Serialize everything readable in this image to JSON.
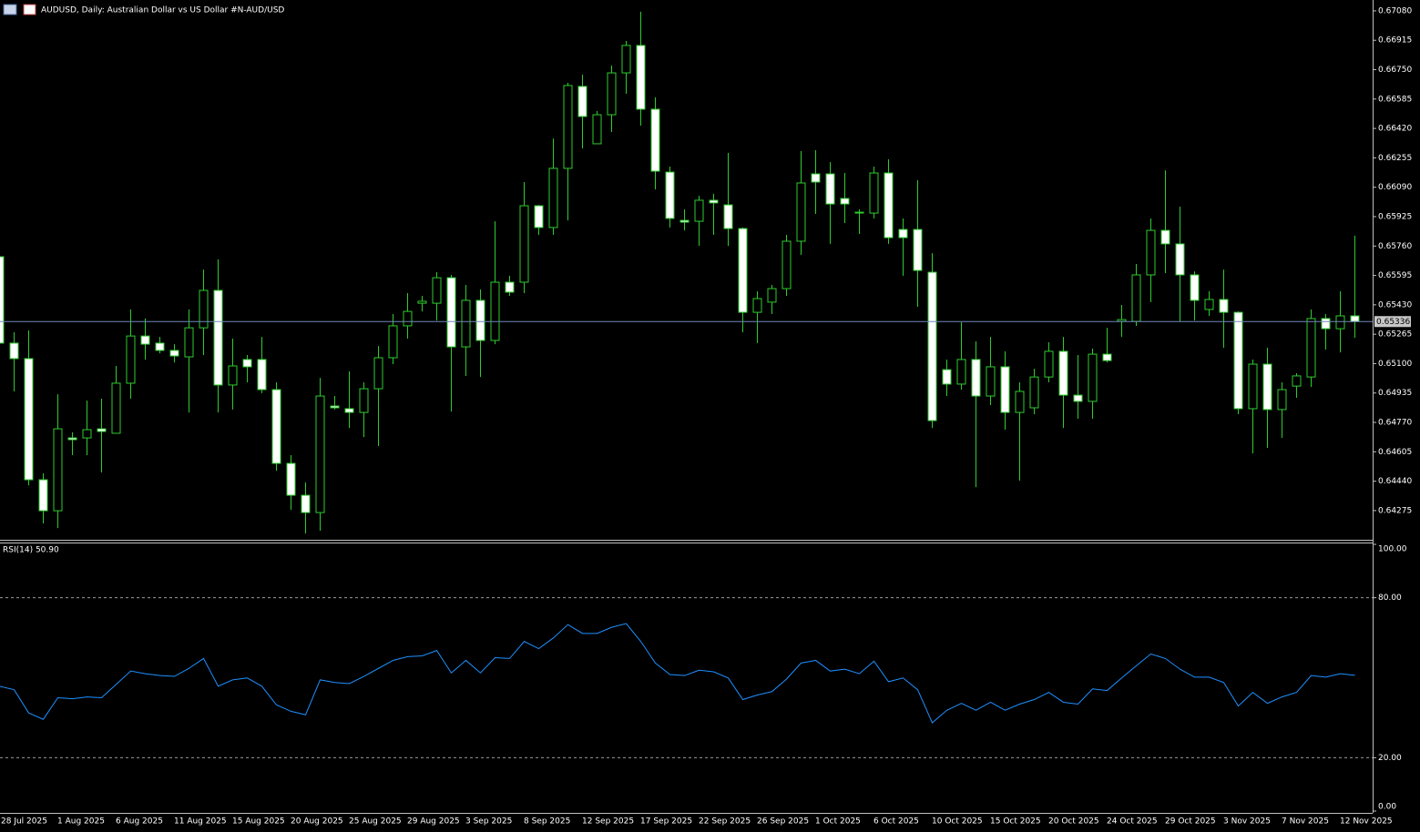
{
  "chart_data": [
    {
      "type": "candlestick",
      "title": "AUDUSD, Daily:  Australian Dollar vs US Dollar #N-AUD/USD",
      "categories": [
        "28 Jul 2025",
        null,
        null,
        null,
        "1 Aug 2025",
        null,
        null,
        null,
        "6 Aug 2025",
        null,
        null,
        null,
        "11 Aug 2025",
        null,
        null,
        null,
        "15 Aug 2025",
        null,
        null,
        null,
        "20 Aug 2025",
        null,
        null,
        null,
        "25 Aug 2025",
        null,
        null,
        null,
        "29 Aug 2025",
        null,
        null,
        null,
        "3 Sep 2025",
        null,
        null,
        null,
        "8 Sep 2025",
        null,
        null,
        null,
        "12 Sep 2025",
        null,
        null,
        null,
        "17 Sep 2025",
        null,
        null,
        null,
        "22 Sep 2025",
        null,
        null,
        null,
        "26 Sep 2025",
        null,
        null,
        null,
        "1 Oct 2025",
        null,
        null,
        null,
        "6 Oct 2025",
        null,
        null,
        null,
        "10 Oct 2025",
        null,
        null,
        null,
        "15 Oct 2025",
        null,
        null,
        null,
        "20 Oct 2025",
        null,
        null,
        null,
        "24 Oct 2025",
        null,
        null,
        null,
        "29 Oct 2025",
        null,
        null,
        null,
        "3 Nov 2025",
        null,
        null,
        null,
        "7 Nov 2025",
        null,
        null,
        null,
        "12 Nov 2025",
        null
      ],
      "open": [
        0.657,
        0.65215,
        0.65128,
        0.64448,
        0.64274,
        0.64683,
        0.64683,
        0.64734,
        0.64709,
        0.6499,
        0.65255,
        0.65215,
        0.65174,
        0.65138,
        0.65301,
        0.65511,
        0.6498,
        0.65123,
        0.65123,
        0.64954,
        0.6454,
        0.64361,
        0.64264,
        0.64862,
        0.64847,
        0.64826,
        0.64959,
        0.65133,
        0.65312,
        0.65439,
        0.65439,
        0.65582,
        0.65194,
        0.65455,
        0.6523,
        0.65557,
        0.65557,
        0.65986,
        0.65864,
        0.66196,
        0.66656,
        0.66334,
        0.66497,
        0.66732,
        0.66886,
        0.66528,
        0.66175,
        0.65904,
        0.65899,
        0.66017,
        0.65991,
        0.65858,
        0.65388,
        0.65445,
        0.65521,
        0.65787,
        0.66165,
        0.66165,
        0.66027,
        0.6595,
        0.65945,
        0.6617,
        0.65853,
        0.65853,
        0.65613,
        0.65066,
        0.64985,
        0.65123,
        0.64918,
        0.65082,
        0.64826,
        0.64852,
        0.65025,
        0.65169,
        0.64923,
        0.64888,
        0.65153,
        0.65337,
        0.65337,
        0.65598,
        0.65848,
        0.65772,
        0.65598,
        0.65404,
        0.6546,
        0.65388,
        0.64847,
        0.65097,
        0.64842,
        0.64974,
        0.65025,
        0.65353,
        0.65296,
        0.65368
      ],
      "high": [
        0.657,
        0.65276,
        0.65286,
        0.64484,
        0.64928,
        0.64714,
        0.64893,
        0.64903,
        0.65087,
        0.65404,
        0.65353,
        0.6525,
        0.65209,
        0.65404,
        0.65628,
        0.65685,
        0.6524,
        0.65148,
        0.6525,
        0.64995,
        0.64586,
        0.64433,
        0.6502,
        0.64918,
        0.65056,
        0.64995,
        0.65199,
        0.65378,
        0.65496,
        0.6548,
        0.65613,
        0.65598,
        0.65542,
        0.65516,
        0.65899,
        0.65593,
        0.66119,
        0.65991,
        0.66364,
        0.66676,
        0.66722,
        0.66518,
        0.66773,
        0.66911,
        0.67075,
        0.66594,
        0.66206,
        0.65966,
        0.66042,
        0.66053,
        0.66283,
        0.65864,
        0.65506,
        0.65542,
        0.65823,
        0.66293,
        0.66298,
        0.66231,
        0.6617,
        0.65966,
        0.66206,
        0.66247,
        0.65915,
        0.66129,
        0.6572,
        0.65123,
        0.65332,
        0.65225,
        0.6525,
        0.65169,
        0.64995,
        0.65071,
        0.6522,
        0.6525,
        0.65148,
        0.65184,
        0.65301,
        0.65429,
        0.65659,
        0.65915,
        0.66185,
        0.65981,
        0.65618,
        0.65506,
        0.65628,
        0.65393,
        0.65123,
        0.65189,
        0.64995,
        0.65046,
        0.65404,
        0.65378,
        0.65506,
        0.65818
      ],
      "low": [
        0.65199,
        0.64944,
        0.64417,
        0.64203,
        0.64177,
        0.64586,
        0.64586,
        0.64489,
        0.64709,
        0.64903,
        0.65123,
        0.65158,
        0.65107,
        0.64826,
        0.65148,
        0.64826,
        0.64842,
        0.64995,
        0.64934,
        0.64499,
        0.64279,
        0.64147,
        0.64162,
        0.64842,
        0.64739,
        0.64688,
        0.64637,
        0.65097,
        0.6524,
        0.65393,
        0.65342,
        0.64831,
        0.65031,
        0.65025,
        0.65209,
        0.6548,
        0.65496,
        0.65823,
        0.65823,
        0.65904,
        0.66308,
        0.66334,
        0.664,
        0.66615,
        0.66436,
        0.66078,
        0.65864,
        0.65848,
        0.65761,
        0.65823,
        0.65761,
        0.65276,
        0.65215,
        0.65378,
        0.6548,
        0.6571,
        0.6594,
        0.65772,
        0.65889,
        0.65828,
        0.65915,
        0.65772,
        0.65593,
        0.65419,
        0.64739,
        0.64918,
        0.64954,
        0.64407,
        0.64867,
        0.64729,
        0.64443,
        0.64816,
        0.64995,
        0.64739,
        0.6479,
        0.6479,
        0.65107,
        0.6525,
        0.65312,
        0.65445,
        0.65608,
        0.65337,
        0.65342,
        0.65368,
        0.65189,
        0.64816,
        0.64596,
        0.64627,
        0.64683,
        0.64908,
        0.64969,
        0.65179,
        0.65163,
        0.65245
      ],
      "close": [
        0.65215,
        0.65128,
        0.64448,
        0.64274,
        0.64734,
        0.64673,
        0.64729,
        0.64719,
        0.6499,
        0.65255,
        0.65209,
        0.65174,
        0.65143,
        0.65301,
        0.65511,
        0.6498,
        0.65087,
        0.65082,
        0.64954,
        0.6454,
        0.64361,
        0.64264,
        0.64918,
        0.64852,
        0.64826,
        0.64959,
        0.65133,
        0.65312,
        0.65393,
        0.6545,
        0.65582,
        0.65194,
        0.65455,
        0.6523,
        0.65557,
        0.65501,
        0.65986,
        0.65864,
        0.66196,
        0.66661,
        0.66487,
        0.66497,
        0.66732,
        0.66886,
        0.66528,
        0.6618,
        0.65915,
        0.65894,
        0.66017,
        0.66002,
        0.65858,
        0.65388,
        0.65465,
        0.65521,
        0.65787,
        0.66114,
        0.66119,
        0.65996,
        0.65996,
        0.65945,
        0.6617,
        0.65807,
        0.65807,
        0.65623,
        0.6478,
        0.64985,
        0.65123,
        0.64918,
        0.65082,
        0.64826,
        0.64944,
        0.65025,
        0.65169,
        0.64923,
        0.64888,
        0.65153,
        0.65117,
        0.65347,
        0.65598,
        0.65848,
        0.65772,
        0.65598,
        0.65455,
        0.6546,
        0.65388,
        0.64847,
        0.65097,
        0.64842,
        0.64954,
        0.65031,
        0.65353,
        0.65296,
        0.65368,
        0.65336
      ],
      "up_color": "#000000",
      "down_color": "#ffffff",
      "wick_color": "#2ecc2e",
      "current_price": 0.65336,
      "current_price_color": "#7088b8",
      "ylim": [
        0.64111,
        0.67141
      ],
      "yticks": [
        {
          "value": 0.6708,
          "label": "0.67080"
        },
        0.66915,
        {
          "value": 0.6675,
          "label": "0.66750"
        },
        0.66585,
        {
          "value": 0.6642,
          "label": "0.66420"
        },
        0.66255,
        {
          "value": 0.6609,
          "label": "0.66090"
        },
        0.65925,
        {
          "value": 0.6576,
          "label": "0.65760"
        },
        0.65595,
        {
          "value": 0.6543,
          "label": "0.65430"
        },
        0.65265,
        {
          "value": 0.651,
          "label": "0.65100"
        },
        0.64935,
        {
          "value": 0.6477,
          "label": "0.64770"
        },
        0.64605,
        {
          "value": 0.6444,
          "label": "0.64440"
        },
        0.64275
      ],
      "grid": false
    },
    {
      "type": "line",
      "title": "RSI(14) 50.90",
      "values": [
        46.8,
        45.5,
        36.8,
        34.4,
        42.5,
        42.1,
        42.8,
        42.5,
        47.5,
        52.5,
        51.5,
        50.8,
        50.5,
        53.5,
        57.2,
        46.8,
        49.2,
        49.9,
        46.8,
        39.8,
        37.4,
        36.1,
        49.2,
        48.2,
        47.8,
        50.5,
        53.5,
        56.5,
        57.9,
        58.2,
        60.2,
        51.8,
        56.5,
        51.8,
        57.5,
        57.2,
        63.6,
        60.9,
        64.9,
        69.9,
        66.6,
        66.6,
        68.9,
        70.3,
        63.6,
        55.5,
        51.2,
        50.8,
        52.8,
        52.2,
        49.9,
        41.8,
        43.5,
        44.8,
        49.5,
        55.5,
        56.5,
        52.5,
        53.2,
        51.5,
        56.2,
        48.5,
        49.9,
        45.5,
        33.1,
        37.8,
        40.4,
        37.8,
        40.8,
        37.8,
        40.1,
        41.8,
        44.5,
        40.8,
        40.1,
        45.8,
        45.2,
        49.9,
        54.5,
        58.9,
        57.2,
        53.2,
        50.2,
        50.2,
        48.2,
        39.4,
        44.5,
        40.4,
        42.8,
        44.5,
        50.8,
        50.2,
        51.5,
        50.9
      ],
      "color": "#1e90ff",
      "ylim": [
        0,
        100
      ],
      "yticks": [
        {
          "value": 100,
          "label": "100.00"
        },
        {
          "value": 80,
          "label": "80.00"
        },
        {
          "value": 20,
          "label": "20.00"
        },
        {
          "value": 0,
          "label": "0.00"
        }
      ],
      "grid": true,
      "grid_color": "#9a9a9a"
    }
  ]
}
